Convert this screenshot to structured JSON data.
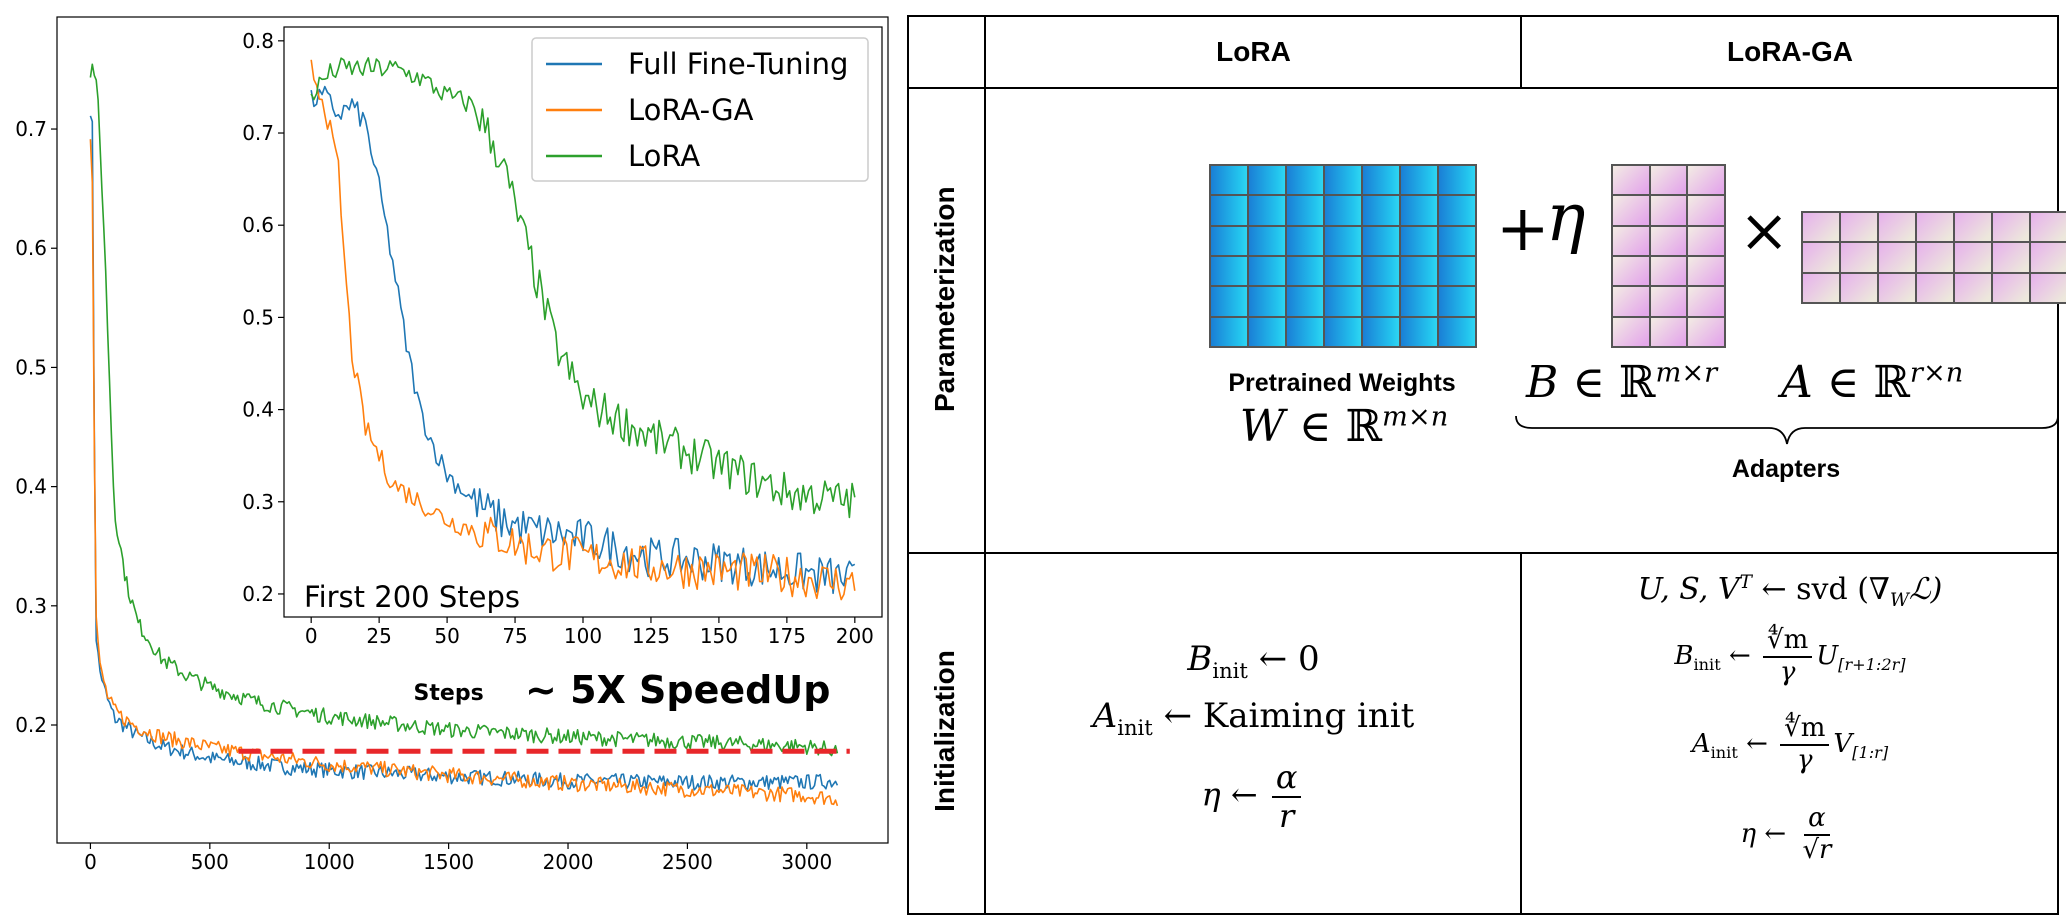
{
  "chart_data": [
    {
      "type": "line",
      "title": "",
      "xlabel": "Steps",
      "ylabel": "",
      "xlim": [
        -140,
        3340
      ],
      "ylim": [
        0.101,
        0.794
      ],
      "x_ticks": [
        0,
        500,
        1000,
        1500,
        2000,
        2500,
        3000
      ],
      "y_ticks": [
        0.2,
        0.3,
        0.4,
        0.5,
        0.6,
        0.7
      ],
      "grid": false,
      "legend": "none",
      "annotation": "~ 5X SpeedUp",
      "reference_line": {
        "y": 0.178,
        "x_range": [
          620,
          3180
        ],
        "style": "dashed",
        "color": "#e8272a"
      },
      "series": [
        {
          "name": "Full Fine-Tuning",
          "color": "#1f77b4",
          "x": [
            0,
            10,
            20,
            40,
            70,
            100,
            150,
            200,
            300,
            500,
            800,
            1000,
            1500,
            2000,
            2500,
            3000,
            3130
          ],
          "y": [
            0.715,
            0.7,
            0.28,
            0.245,
            0.222,
            0.206,
            0.198,
            0.191,
            0.182,
            0.172,
            0.165,
            0.162,
            0.157,
            0.153,
            0.152,
            0.152,
            0.153
          ]
        },
        {
          "name": "LoRA-GA",
          "color": "#ff7f0e",
          "x": [
            0,
            10,
            20,
            40,
            70,
            100,
            150,
            200,
            300,
            500,
            800,
            1000,
            1500,
            2000,
            2500,
            3000,
            3130
          ],
          "y": [
            0.695,
            0.65,
            0.3,
            0.25,
            0.225,
            0.212,
            0.204,
            0.198,
            0.19,
            0.181,
            0.172,
            0.167,
            0.158,
            0.151,
            0.146,
            0.141,
            0.138
          ]
        },
        {
          "name": "LoRA",
          "color": "#2ca02c",
          "x": [
            0,
            10,
            30,
            60,
            100,
            150,
            200,
            300,
            400,
            500,
            700,
            1000,
            1500,
            2000,
            2500,
            3000,
            3130
          ],
          "y": [
            0.745,
            0.755,
            0.73,
            0.6,
            0.38,
            0.32,
            0.285,
            0.255,
            0.242,
            0.232,
            0.219,
            0.207,
            0.196,
            0.19,
            0.186,
            0.182,
            0.179
          ]
        }
      ]
    },
    {
      "type": "line",
      "title": "",
      "annotation": "First 200 Steps",
      "xlabel": "",
      "ylabel": "",
      "xlim": [
        -10,
        210
      ],
      "ylim": [
        0.175,
        0.815
      ],
      "x_ticks": [
        0,
        25,
        50,
        75,
        100,
        125,
        150,
        175,
        200
      ],
      "y_ticks": [
        0.2,
        0.3,
        0.4,
        0.5,
        0.6,
        0.7,
        0.8
      ],
      "grid": false,
      "legend": "top-right",
      "series": [
        {
          "name": "Full Fine-Tuning",
          "color": "#1f77b4",
          "x": [
            0,
            5,
            10,
            15,
            20,
            25,
            30,
            35,
            40,
            45,
            50,
            60,
            70,
            80,
            100,
            125,
            150,
            175,
            200
          ],
          "y": [
            0.735,
            0.74,
            0.72,
            0.73,
            0.71,
            0.64,
            0.56,
            0.47,
            0.4,
            0.36,
            0.33,
            0.3,
            0.28,
            0.27,
            0.26,
            0.24,
            0.235,
            0.225,
            0.215
          ]
        },
        {
          "name": "LoRA-GA",
          "color": "#ff7f0e",
          "x": [
            0,
            5,
            10,
            12,
            15,
            20,
            25,
            30,
            40,
            50,
            60,
            70,
            80,
            100,
            125,
            150,
            175,
            200
          ],
          "y": [
            0.77,
            0.73,
            0.66,
            0.57,
            0.46,
            0.38,
            0.35,
            0.32,
            0.3,
            0.28,
            0.27,
            0.26,
            0.25,
            0.24,
            0.23,
            0.225,
            0.22,
            0.21
          ]
        },
        {
          "name": "LoRA",
          "color": "#2ca02c",
          "x": [
            0,
            5,
            10,
            20,
            30,
            40,
            50,
            60,
            70,
            80,
            90,
            100,
            125,
            150,
            175,
            200
          ],
          "y": [
            0.74,
            0.76,
            0.77,
            0.77,
            0.77,
            0.76,
            0.74,
            0.73,
            0.67,
            0.57,
            0.47,
            0.41,
            0.37,
            0.34,
            0.31,
            0.3
          ]
        }
      ]
    }
  ],
  "table": {
    "col_headers": [
      "LoRA",
      "LoRA-GA"
    ],
    "row_labels": [
      "Parameterization",
      "Initialization"
    ],
    "parameterization": {
      "pretrained_caption": "Pretrained Weights",
      "adapters_caption": "Adapters",
      "plus": "+",
      "eta": "η",
      "times": "×",
      "W_lhs": "W",
      "W_rhs": "∈ ℝ",
      "W_sup": "m×n",
      "B_lhs": "B",
      "B_rhs": "∈ ℝ",
      "B_sup": "m×r",
      "A_lhs": "A",
      "A_rhs": "∈ ℝ",
      "A_sup": "r×n"
    },
    "lora_init": {
      "B_init_lhs": "B",
      "init_sub": "init",
      "B_init_rhs": "← 0",
      "A_init_lhs": "A",
      "A_init_rhs": "← Kaiming init",
      "eta_lhs": "η ←",
      "eta_num": "α",
      "eta_den": "r"
    },
    "loraga_init": {
      "svd_lhs": "U, S, V",
      "svd_sup": "T",
      "svd_rhs": "← svd (∇",
      "svd_sub": "W",
      "svd_end": "ℒ)",
      "B_lhs": "B",
      "B_arrow": "←",
      "root_num": "∜m",
      "gamma": "γ",
      "B_U": "U",
      "B_range": "[r+1:2r]",
      "A_lhs": "A",
      "A_arrow": "←",
      "A_V": "V",
      "A_range": "[1:r]",
      "eta_lhs": "η ←",
      "eta_num": "α",
      "eta_den": "√r"
    }
  }
}
